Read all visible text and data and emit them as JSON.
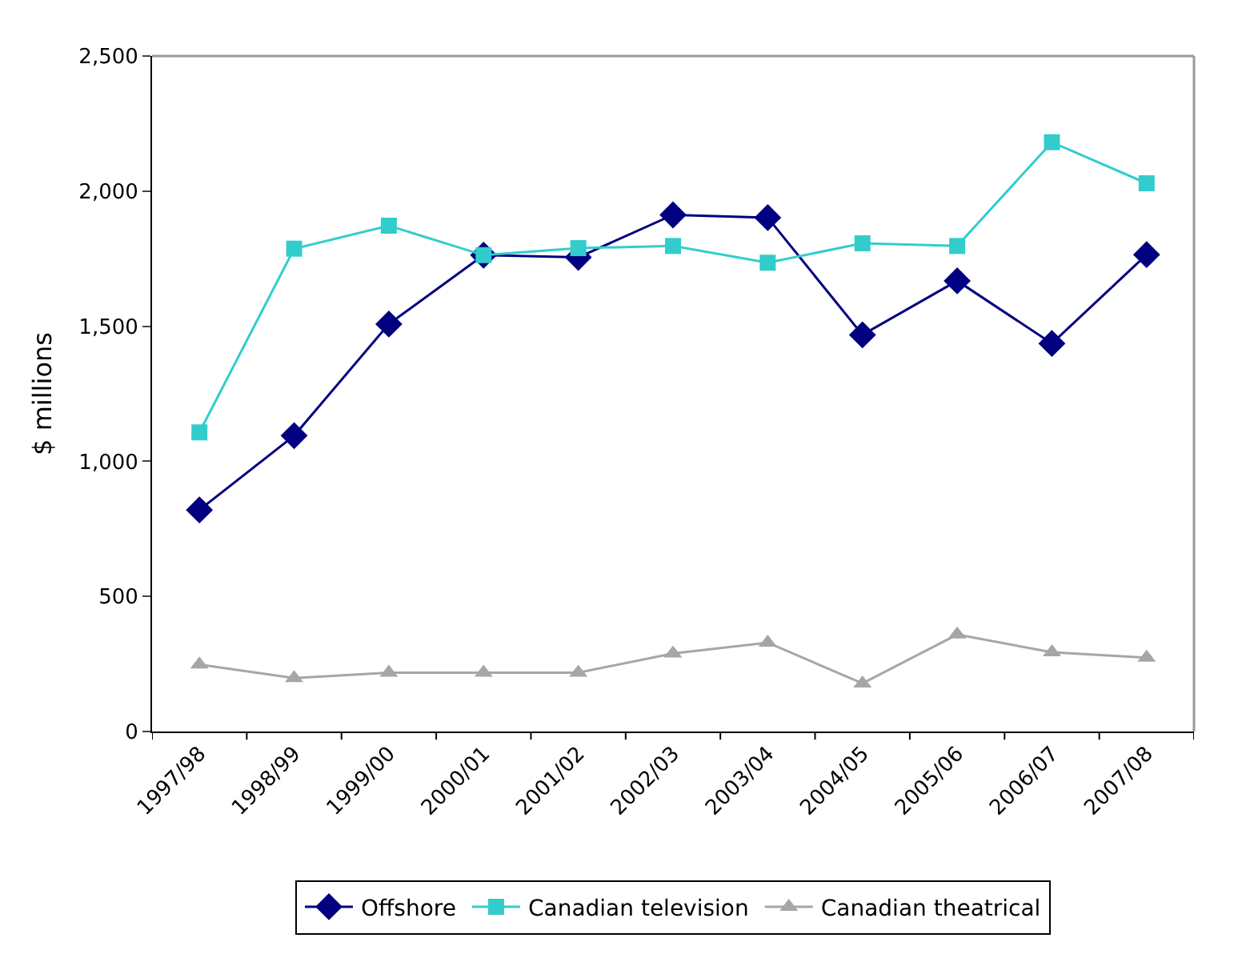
{
  "chart_data": {
    "type": "line",
    "ylabel": "$ millions",
    "categories": [
      "1997/98",
      "1998/99",
      "1999/00",
      "2000/01",
      "2001/02",
      "2002/03",
      "2003/04",
      "2004/05",
      "2005/06",
      "2006/07",
      "2007/08"
    ],
    "series": [
      {
        "name": "Offshore",
        "color": "#000080",
        "marker": "diamond",
        "values": [
          820,
          1095,
          1508,
          1763,
          1755,
          1912,
          1902,
          1468,
          1668,
          1436,
          1765
        ]
      },
      {
        "name": "Canadian television",
        "color": "#33cccc",
        "marker": "square",
        "values": [
          1107,
          1787,
          1872,
          1763,
          1789,
          1797,
          1735,
          1807,
          1797,
          2181,
          2029
        ]
      },
      {
        "name": "Canadian theatrical",
        "color": "#a6a6a6",
        "marker": "triangle",
        "values": [
          248,
          198,
          218,
          218,
          218,
          289,
          329,
          178,
          359,
          293,
          273
        ]
      }
    ],
    "ylim": [
      0,
      2500
    ],
    "yticks": [
      {
        "value": 0,
        "label": "0"
      },
      {
        "value": 500,
        "label": "500"
      },
      {
        "value": 1000,
        "label": "1,000"
      },
      {
        "value": 1500,
        "label": "1,500"
      },
      {
        "value": 2000,
        "label": "2,000"
      },
      {
        "value": 2500,
        "label": "2,500"
      }
    ],
    "legend": "bottom",
    "line_style": "solid"
  }
}
